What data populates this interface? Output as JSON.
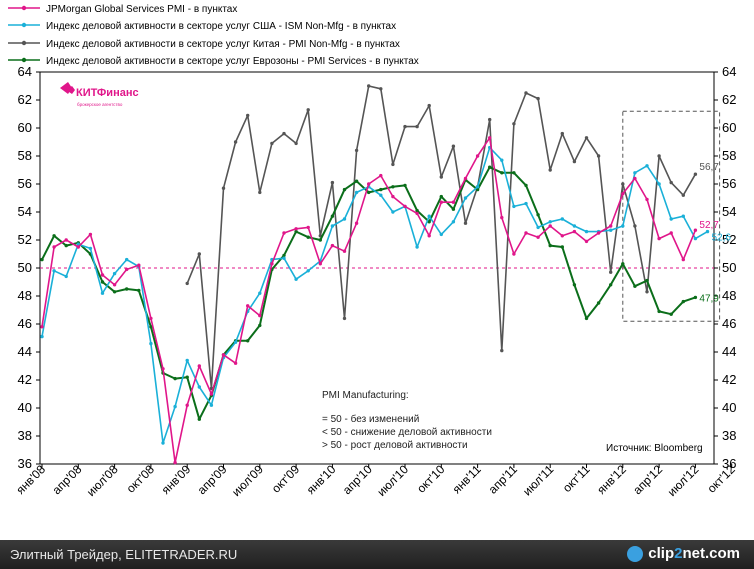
{
  "logo": {
    "name": "КИТФинанс",
    "tagline": "брокерское агентство"
  },
  "source": "Источник: Bloomberg",
  "note": {
    "title": "PMI Manufacturing:",
    "lines": [
      "= 50 -  без изменений",
      "< 50 -  снижение деловой активности",
      "> 50 -  рост деловой активности"
    ]
  },
  "footer": {
    "left": "Элитный Трейдер, ELITETRADER.RU",
    "right_a": "clip",
    "right_b": "2",
    "right_c": "net.com"
  },
  "colors": {
    "global": "#e0168a",
    "usa": "#1ab0d8",
    "china": "#555555",
    "euro": "#0b6e1a",
    "ref50": "#e0168a"
  },
  "chart_data": {
    "type": "line",
    "title": "",
    "ylim": [
      36,
      64
    ],
    "yticks": [
      36,
      38,
      40,
      42,
      44,
      46,
      48,
      50,
      52,
      54,
      56,
      58,
      60,
      62,
      64
    ],
    "y_left_labels": [
      "36",
      "38",
      "40",
      "42",
      "44",
      "46",
      "48",
      "50",
      "52",
      "54",
      "56",
      "58",
      "60",
      "62",
      "64"
    ],
    "y_right_labels": [
      "36",
      "38",
      "40",
      "42",
      "44",
      "46",
      "48",
      "50",
      "52",
      "54",
      "56",
      "58",
      "60",
      "62",
      "64"
    ],
    "xlabels": [
      "янв'08",
      "апр'08",
      "июл'08",
      "окт'08",
      "янв'09",
      "апр'09",
      "июл'09",
      "окт'09",
      "янв'10",
      "апр'10",
      "июл'10",
      "окт'10",
      "янв'11",
      "апр'11",
      "июл'11",
      "окт'11",
      "янв'12",
      "апр'12",
      "июл'12",
      "окт'12"
    ],
    "x_start": "2008-01",
    "reference_line": 50,
    "highlight_box": {
      "from_month_index": 48,
      "to_month_index": 56,
      "ymin": 46.2,
      "ymax": 61.2
    },
    "series": [
      {
        "key": "global",
        "name": "JPMorgan Global Services PMI - в пунктах",
        "start_index": 0,
        "values": [
          45.8,
          51.5,
          52.0,
          51.5,
          52.4,
          49.5,
          48.8,
          49.9,
          50.2,
          46.4,
          42.8,
          36.1,
          40.2,
          43.0,
          41.0,
          43.8,
          43.2,
          47.3,
          46.6,
          50.3,
          52.5,
          52.8,
          52.9,
          50.3,
          51.6,
          51.2,
          53.2,
          56.0,
          56.6,
          55.1,
          54.4,
          53.9,
          52.3,
          54.7,
          54.7,
          56.4,
          58.0,
          59.3,
          53.6,
          51.0,
          52.5,
          52.2,
          53.0,
          52.3,
          52.6,
          51.9,
          52.5,
          53.0,
          55.3,
          56.4,
          54.9,
          52.1,
          52.5,
          50.6,
          52.7
        ]
      },
      {
        "key": "usa",
        "name": "Индекс деловой активности в секторе услуг США - ISM Non-Mfg - в пунктах",
        "start_index": 0,
        "values": [
          45.1,
          49.8,
          49.4,
          51.7,
          51.4,
          48.2,
          49.6,
          50.6,
          50.1,
          44.6,
          37.5,
          40.1,
          43.4,
          41.5,
          40.2,
          43.6,
          44.7,
          46.9,
          48.2,
          50.6,
          50.7,
          49.2,
          49.8,
          50.5,
          53.0,
          53.5,
          55.4,
          55.8,
          55.2,
          54.0,
          54.4,
          51.5,
          53.7,
          52.4,
          53.3,
          55.0,
          55.8,
          58.6,
          57.7,
          54.4,
          54.6,
          52.9,
          53.3,
          53.5,
          53.0,
          52.6,
          52.6,
          52.7,
          53.0,
          56.8,
          57.3,
          56.0,
          53.5,
          53.7,
          52.1,
          52.6
        ]
      },
      {
        "key": "china",
        "name": "Индекс деловой активности в секторе услуг Китая - PMI Non-Mfg - в пунктах",
        "start_index": 12,
        "values": [
          48.9,
          51.0,
          41.4,
          55.7,
          59.0,
          60.9,
          55.4,
          58.9,
          59.6,
          58.9,
          61.3,
          52.3,
          56.1,
          46.4,
          58.4,
          63.0,
          62.8,
          57.4,
          60.1,
          60.1,
          61.6,
          56.5,
          58.7,
          53.2,
          55.8,
          60.6,
          44.1,
          60.3,
          62.5,
          62.1,
          57.0,
          59.6,
          57.6,
          59.3,
          58.0,
          49.7,
          56.0,
          53.0,
          48.3,
          58.0,
          56.1,
          55.2,
          56.7
        ]
      },
      {
        "key": "euro",
        "name": "Индекс деловой активности в секторе услуг Еврозоны - PMI Services - в пунктах",
        "start_index": 0,
        "values": [
          50.6,
          52.3,
          51.6,
          51.8,
          51.0,
          49.0,
          48.3,
          48.5,
          48.4,
          45.8,
          42.5,
          42.1,
          42.2,
          39.2,
          40.9,
          43.8,
          44.8,
          44.8,
          45.9,
          49.9,
          50.9,
          52.6,
          52.2,
          52.0,
          53.7,
          55.6,
          56.2,
          55.4,
          55.6,
          55.8,
          55.9,
          54.1,
          53.3,
          55.1,
          54.2,
          56.3,
          55.6,
          57.2,
          56.8,
          56.8,
          55.9,
          53.8,
          51.6,
          51.5,
          48.8,
          46.4,
          47.5,
          48.8,
          50.3,
          48.7,
          49.1,
          46.9,
          46.7,
          47.6,
          47.9
        ]
      }
    ],
    "end_labels": [
      {
        "key": "china",
        "text": "56,7"
      },
      {
        "key": "global",
        "text": "52,7"
      },
      {
        "key": "usa",
        "text": "52,6"
      },
      {
        "key": "euro",
        "text": "47,9"
      }
    ]
  }
}
